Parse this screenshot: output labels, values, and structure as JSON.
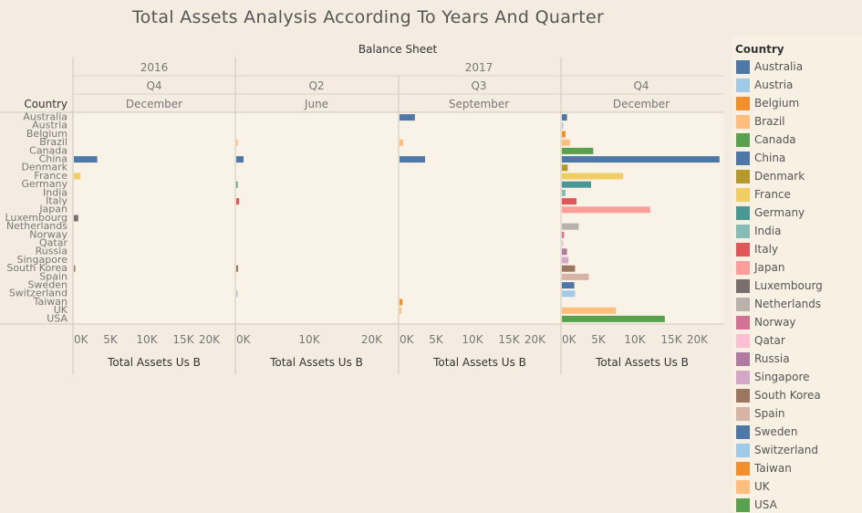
{
  "title": "Total Assets Analysis According To Years And Quarter",
  "header": {
    "top": "Balance Sheet",
    "row_header": "Country",
    "years": [
      {
        "label": "2016"
      },
      {
        "label": "2017"
      }
    ],
    "panels": [
      {
        "quarter": "Q4",
        "month": "December"
      },
      {
        "quarter": "Q2",
        "month": "June"
      },
      {
        "quarter": "Q3",
        "month": "September"
      },
      {
        "quarter": "Q4",
        "month": "December"
      }
    ]
  },
  "legend": {
    "title": "Country"
  },
  "chart_data": {
    "type": "bar",
    "orientation": "horizontal",
    "measure": "Total Assets Us B",
    "categories": [
      "Australia",
      "Austria",
      "Belgium",
      "Brazil",
      "Canada",
      "China",
      "Denmark",
      "France",
      "Germany",
      "India",
      "Italy",
      "Japan",
      "Luxembourg",
      "Netherlands",
      "Norway",
      "Qatar",
      "Russia",
      "Singapore",
      "South Korea",
      "Spain",
      "Sweden",
      "Switzerland",
      "Taiwan",
      "UK",
      "USA"
    ],
    "colors": [
      "#4e79a7",
      "#a0cbe8",
      "#f28e2b",
      "#ffbe7d",
      "#59a14f",
      "#4e79a7",
      "#b6992d",
      "#f1ce63",
      "#499894",
      "#86bcb6",
      "#e15759",
      "#ff9d9a",
      "#79706e",
      "#bab0ac",
      "#d37295",
      "#fabfd2",
      "#b07aa1",
      "#d4a6c8",
      "#9d7660",
      "#d7b5a6",
      "#4e79a7",
      "#a0cbe8",
      "#f28e2b",
      "#ffbe7d",
      "#59a14f"
    ],
    "panels": [
      {
        "year": "2016",
        "quarter": "Q4",
        "month": "December",
        "xlim": [
          0,
          22000
        ],
        "ticks": [
          "0K",
          "5K",
          "10K",
          "15K",
          "20K"
        ],
        "xlabel": "Total Assets Us B",
        "values": [
          null,
          null,
          null,
          null,
          null,
          3200,
          null,
          900,
          null,
          null,
          null,
          null,
          600,
          null,
          null,
          null,
          null,
          null,
          150,
          null,
          null,
          null,
          null,
          null,
          null
        ]
      },
      {
        "year": "2017",
        "quarter": "Q2",
        "month": "June",
        "xlim": [
          0,
          22000
        ],
        "ticks": [
          "0K",
          "10K",
          "20K"
        ],
        "xlabel": "Total Assets Us B",
        "values": [
          null,
          null,
          null,
          200,
          null,
          1000,
          null,
          null,
          150,
          null,
          400,
          null,
          null,
          null,
          null,
          null,
          null,
          null,
          250,
          null,
          null,
          100,
          null,
          null,
          null
        ]
      },
      {
        "year": "2017",
        "quarter": "Q3",
        "month": "September",
        "xlim": [
          0,
          22000
        ],
        "ticks": [
          "0K",
          "5K",
          "10K",
          "15K",
          "20K"
        ],
        "xlabel": "Total Assets Us B",
        "values": [
          2100,
          null,
          null,
          500,
          null,
          3500,
          null,
          null,
          null,
          null,
          null,
          null,
          null,
          null,
          null,
          null,
          null,
          null,
          null,
          null,
          null,
          null,
          400,
          250,
          null
        ]
      },
      {
        "year": "2017",
        "quarter": "Q4",
        "month": "December",
        "xlim": [
          0,
          22000
        ],
        "ticks": [
          "0K",
          "5K",
          "10K",
          "15K",
          "20K"
        ],
        "xlabel": "Total Assets Us B",
        "values": [
          700,
          100,
          500,
          1100,
          4300,
          21600,
          800,
          8400,
          4000,
          500,
          2000,
          12100,
          null,
          2300,
          300,
          100,
          700,
          900,
          1800,
          3700,
          1700,
          1800,
          null,
          7400,
          14100
        ]
      }
    ]
  }
}
